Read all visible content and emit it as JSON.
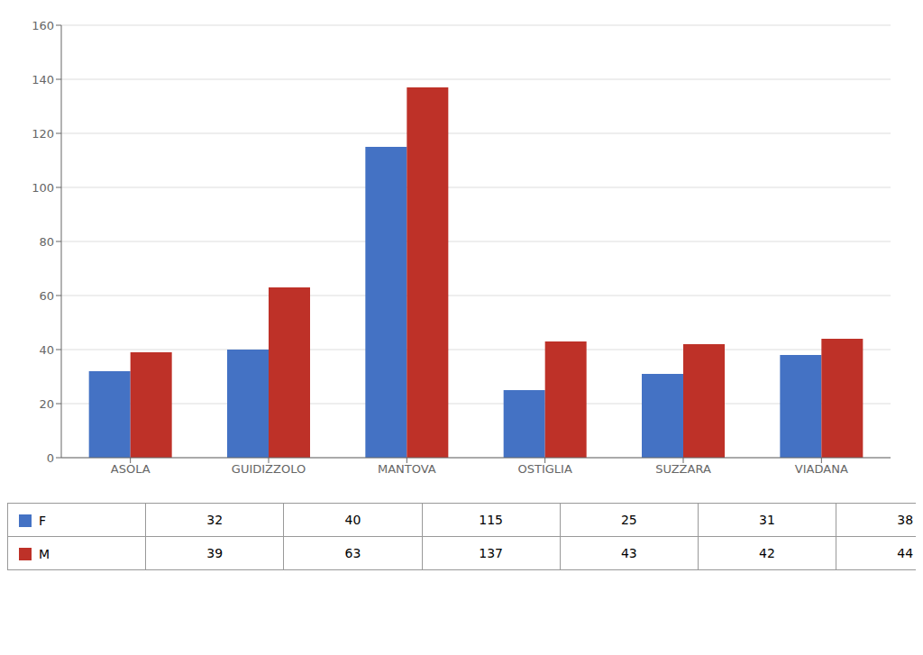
{
  "chart_data": {
    "type": "bar",
    "categories": [
      "ASOLA",
      "GUIDIZZOLO",
      "MANTOVA",
      "OSTIGLIA",
      "SUZZARA",
      "VIADANA"
    ],
    "series": [
      {
        "name": "F",
        "color": "#4472C4",
        "values": [
          32,
          40,
          115,
          25,
          31,
          38
        ]
      },
      {
        "name": "M",
        "color": "#BE3128",
        "values": [
          39,
          63,
          137,
          43,
          42,
          44
        ]
      }
    ],
    "ylim": [
      0,
      160
    ],
    "yticks": [
      0,
      20,
      40,
      60,
      80,
      100,
      120,
      140,
      160
    ],
    "grid": true
  }
}
